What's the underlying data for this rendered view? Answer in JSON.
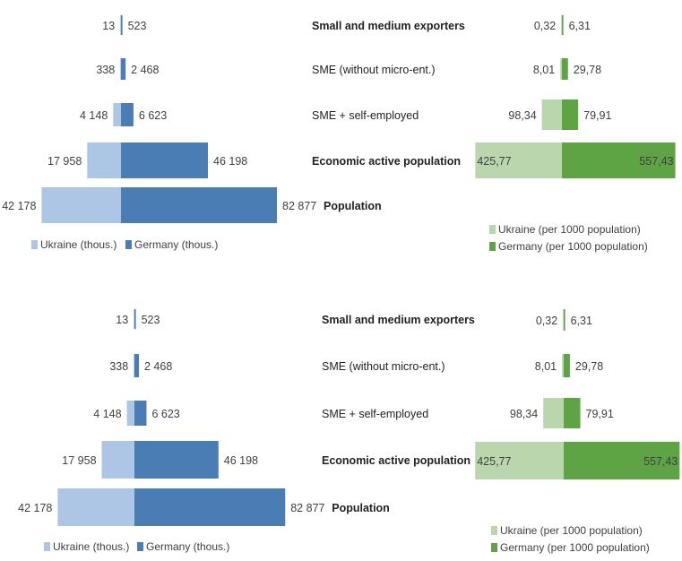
{
  "chart_data": [
    {
      "type": "bar",
      "orientation": "horizontal-butterfly",
      "categories": [
        "Small and medium exporters",
        "SME (without micro-ent.)",
        "SME + self-employed",
        "Economic active population",
        "Population"
      ],
      "series": [
        {
          "name": "Ukraine (thous.)",
          "values": [
            13,
            338,
            4148,
            17958,
            42178
          ],
          "labels": [
            "13",
            "338",
            "4 148",
            "17 958",
            "42 178"
          ],
          "color": "#adc6e6"
        },
        {
          "name": "Germany (thous.)",
          "values": [
            523,
            2468,
            6623,
            46198,
            82877
          ],
          "labels": [
            "523",
            "2 468",
            "6 623",
            "46 198",
            "82 877"
          ],
          "color": "#4a7db4"
        }
      ],
      "legend_position": "bottom-left"
    },
    {
      "type": "bar",
      "orientation": "horizontal-butterfly",
      "categories": [
        "Small and medium exporters",
        "SME (without micro-ent.)",
        "SME + self-employed",
        "Economic active population"
      ],
      "series": [
        {
          "name": "Ukraine (per 1000 population)",
          "values": [
            0.32,
            8.01,
            98.34,
            425.77
          ],
          "labels": [
            "0,32",
            "8,01",
            "98,34",
            "425,77"
          ],
          "color": "#b9d6ad"
        },
        {
          "name": "Germany (per 1000 population)",
          "values": [
            6.31,
            29.78,
            79.91,
            557.43
          ],
          "labels": [
            "6,31",
            "29,78",
            "79,91",
            "557,43"
          ],
          "color": "#5ea344"
        }
      ],
      "legend_position": "bottom-right"
    },
    {
      "type": "bar",
      "orientation": "horizontal-butterfly",
      "categories": [
        "Small and medium exporters",
        "SME (without micro-ent.)",
        "SME + self-employed",
        "Economic active population",
        "Population"
      ],
      "series": [
        {
          "name": "Ukraine (thous.)",
          "values": [
            13,
            338,
            4148,
            17958,
            42178
          ],
          "labels": [
            "13",
            "338",
            "4 148",
            "17 958",
            "42 178"
          ],
          "color": "#adc6e6"
        },
        {
          "name": "Germany (thous.)",
          "values": [
            523,
            2468,
            6623,
            46198,
            82877
          ],
          "labels": [
            "523",
            "2 468",
            "6 623",
            "46 198",
            "82 877"
          ],
          "color": "#4a7db4"
        }
      ],
      "legend_position": "bottom-left"
    },
    {
      "type": "bar",
      "orientation": "horizontal-butterfly",
      "categories": [
        "Small and medium exporters",
        "SME (without micro-ent.)",
        "SME + self-employed",
        "Economic active population"
      ],
      "series": [
        {
          "name": "Ukraine (per 1000 population)",
          "values": [
            0.32,
            8.01,
            98.34,
            425.77
          ],
          "labels": [
            "0,32",
            "8,01",
            "98,34",
            "425,77"
          ],
          "color": "#b9d6ad"
        },
        {
          "name": "Germany (per 1000 population)",
          "values": [
            6.31,
            29.78,
            79.91,
            557.43
          ],
          "labels": [
            "6,31",
            "29,78",
            "79,91",
            "557,43"
          ],
          "color": "#5ea344"
        }
      ],
      "legend_position": "bottom-right"
    }
  ]
}
